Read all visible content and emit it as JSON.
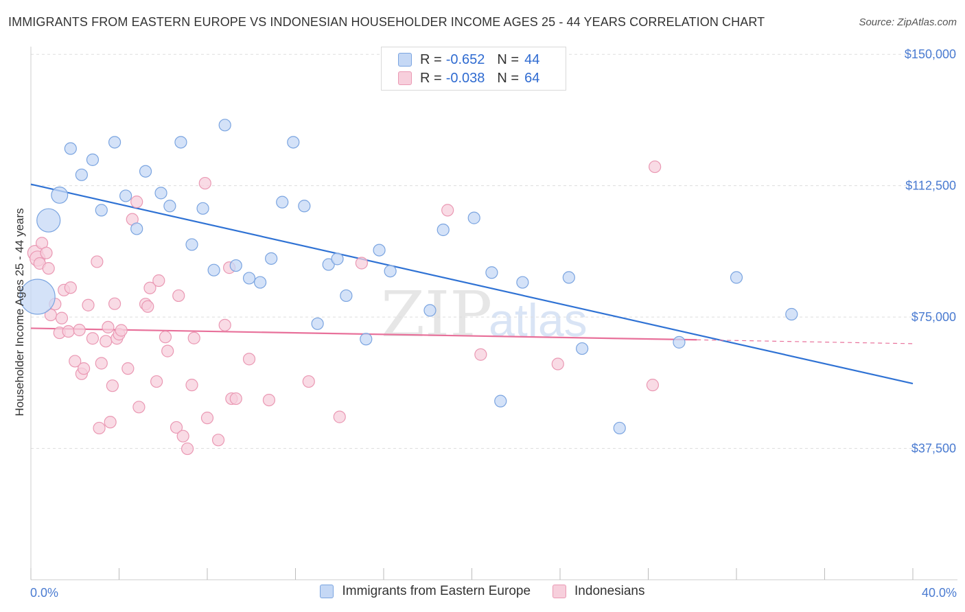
{
  "header": {
    "title": "IMMIGRANTS FROM EASTERN EUROPE VS INDONESIAN HOUSEHOLDER INCOME AGES 25 - 44 YEARS CORRELATION CHART",
    "source": "Source: ZipAtlas.com"
  },
  "legend_stats": [
    {
      "r_label": "R =",
      "r_value": "-0.652",
      "n_label": "N =",
      "n_value": "44"
    },
    {
      "r_label": "R =",
      "r_value": "-0.038",
      "n_label": "N =",
      "n_value": "64"
    }
  ],
  "colors": {
    "blue_fill": "#c5d8f5",
    "blue_stroke": "#7aa4e0",
    "blue_line": "#2f72d4",
    "pink_fill": "#f7cfdc",
    "pink_stroke": "#ea98b3",
    "pink_line": "#e8709a",
    "tick_text": "#4a7bd1",
    "grid": "#dddddd"
  },
  "chart_data": {
    "type": "scatter",
    "title": "IMMIGRANTS FROM EASTERN EUROPE VS INDONESIAN HOUSEHOLDER INCOME AGES 25 - 44 YEARS CORRELATION CHART",
    "xlabel": "",
    "ylabel": "Householder Income Ages 25 - 44 years",
    "xlim": [
      0,
      40
    ],
    "ylim": [
      0,
      157000
    ],
    "x_tick_labels": [
      "0.0%",
      "40.0%"
    ],
    "y_ticks": [
      37500,
      75000,
      112500,
      150000
    ],
    "y_tick_labels": [
      "$37,500",
      "$75,000",
      "$112,500",
      "$150,000"
    ],
    "grid": "horizontal dashed",
    "legend_placement": "bottom",
    "series": [
      {
        "name": "Immigrants from Eastern Europe",
        "color": "#7aa4e0",
        "trend": {
          "x": [
            0,
            40
          ],
          "y": [
            112900,
            56000
          ]
        },
        "points": [
          {
            "x": 0.3,
            "y": 80800,
            "s": 3
          },
          {
            "x": 0.8,
            "y": 102600,
            "s": 2
          },
          {
            "x": 1.3,
            "y": 109800,
            "s": 1.4
          },
          {
            "x": 1.8,
            "y": 123100
          },
          {
            "x": 2.3,
            "y": 115600
          },
          {
            "x": 2.8,
            "y": 119900
          },
          {
            "x": 3.2,
            "y": 105500
          },
          {
            "x": 3.8,
            "y": 124900
          },
          {
            "x": 4.3,
            "y": 109600
          },
          {
            "x": 4.8,
            "y": 100200
          },
          {
            "x": 5.2,
            "y": 116600
          },
          {
            "x": 5.9,
            "y": 110400
          },
          {
            "x": 6.3,
            "y": 106700
          },
          {
            "x": 6.8,
            "y": 124900
          },
          {
            "x": 7.3,
            "y": 95700
          },
          {
            "x": 7.8,
            "y": 106000
          },
          {
            "x": 8.3,
            "y": 88400
          },
          {
            "x": 8.8,
            "y": 129800
          },
          {
            "x": 9.3,
            "y": 89700
          },
          {
            "x": 9.9,
            "y": 86100
          },
          {
            "x": 10.4,
            "y": 84900
          },
          {
            "x": 10.9,
            "y": 91700
          },
          {
            "x": 11.4,
            "y": 107800
          },
          {
            "x": 11.9,
            "y": 124900
          },
          {
            "x": 12.4,
            "y": 106700
          },
          {
            "x": 13.0,
            "y": 73100
          },
          {
            "x": 13.5,
            "y": 90000
          },
          {
            "x": 13.9,
            "y": 91600
          },
          {
            "x": 14.3,
            "y": 81100
          },
          {
            "x": 15.2,
            "y": 68700
          },
          {
            "x": 15.8,
            "y": 94100
          },
          {
            "x": 16.3,
            "y": 88100
          },
          {
            "x": 18.1,
            "y": 76900
          },
          {
            "x": 18.7,
            "y": 99900
          },
          {
            "x": 20.1,
            "y": 103300
          },
          {
            "x": 20.9,
            "y": 87700
          },
          {
            "x": 21.3,
            "y": 51000
          },
          {
            "x": 22.3,
            "y": 84900
          },
          {
            "x": 24.4,
            "y": 86300
          },
          {
            "x": 25.0,
            "y": 66000
          },
          {
            "x": 26.7,
            "y": 43300
          },
          {
            "x": 29.4,
            "y": 67800
          },
          {
            "x": 32.0,
            "y": 86300
          },
          {
            "x": 34.5,
            "y": 75800
          }
        ]
      },
      {
        "name": "Indonesians",
        "color": "#ea98b3",
        "trend": {
          "x": [
            0,
            30.2
          ],
          "y": [
            71800,
            68500
          ]
        },
        "trend_dashed": {
          "x": [
            30.2,
            40
          ],
          "y": [
            68500,
            67400
          ]
        },
        "points": [
          {
            "x": 0.2,
            "y": 93300,
            "s": 1.3
          },
          {
            "x": 0.3,
            "y": 91700,
            "s": 1.3
          },
          {
            "x": 0.4,
            "y": 90300
          },
          {
            "x": 0.5,
            "y": 96100
          },
          {
            "x": 0.7,
            "y": 93300
          },
          {
            "x": 0.8,
            "y": 88900
          },
          {
            "x": 0.9,
            "y": 75600
          },
          {
            "x": 1.1,
            "y": 78700
          },
          {
            "x": 1.3,
            "y": 70500
          },
          {
            "x": 1.4,
            "y": 74700
          },
          {
            "x": 1.5,
            "y": 82700
          },
          {
            "x": 1.7,
            "y": 70900
          },
          {
            "x": 1.8,
            "y": 83400
          },
          {
            "x": 2.0,
            "y": 62400
          },
          {
            "x": 2.2,
            "y": 71300
          },
          {
            "x": 2.3,
            "y": 58800
          },
          {
            "x": 2.4,
            "y": 60300
          },
          {
            "x": 2.6,
            "y": 78400
          },
          {
            "x": 2.8,
            "y": 68900
          },
          {
            "x": 3.0,
            "y": 90800
          },
          {
            "x": 3.1,
            "y": 43300
          },
          {
            "x": 3.2,
            "y": 61800
          },
          {
            "x": 3.4,
            "y": 68100
          },
          {
            "x": 3.5,
            "y": 72100
          },
          {
            "x": 3.6,
            "y": 45000
          },
          {
            "x": 3.7,
            "y": 55400
          },
          {
            "x": 3.8,
            "y": 78800
          },
          {
            "x": 3.9,
            "y": 68900
          },
          {
            "x": 4.0,
            "y": 70100
          },
          {
            "x": 4.1,
            "y": 71200
          },
          {
            "x": 4.4,
            "y": 60300
          },
          {
            "x": 4.6,
            "y": 102900
          },
          {
            "x": 4.8,
            "y": 107900
          },
          {
            "x": 4.9,
            "y": 49300
          },
          {
            "x": 5.2,
            "y": 78700
          },
          {
            "x": 5.3,
            "y": 78000
          },
          {
            "x": 5.4,
            "y": 83300
          },
          {
            "x": 5.7,
            "y": 56600
          },
          {
            "x": 5.8,
            "y": 85400
          },
          {
            "x": 6.1,
            "y": 69300
          },
          {
            "x": 6.2,
            "y": 65300
          },
          {
            "x": 6.6,
            "y": 43500
          },
          {
            "x": 6.7,
            "y": 81100
          },
          {
            "x": 6.9,
            "y": 41000
          },
          {
            "x": 7.1,
            "y": 37400
          },
          {
            "x": 7.3,
            "y": 55600
          },
          {
            "x": 7.4,
            "y": 69000
          },
          {
            "x": 7.9,
            "y": 113200
          },
          {
            "x": 8.0,
            "y": 46200
          },
          {
            "x": 8.5,
            "y": 39900
          },
          {
            "x": 8.8,
            "y": 72700
          },
          {
            "x": 9.0,
            "y": 89100
          },
          {
            "x": 9.1,
            "y": 51700
          },
          {
            "x": 9.3,
            "y": 51700
          },
          {
            "x": 9.9,
            "y": 63000
          },
          {
            "x": 10.8,
            "y": 51300
          },
          {
            "x": 12.6,
            "y": 56600
          },
          {
            "x": 14.0,
            "y": 46500
          },
          {
            "x": 15.0,
            "y": 90400
          },
          {
            "x": 18.9,
            "y": 105500
          },
          {
            "x": 20.4,
            "y": 64300
          },
          {
            "x": 23.9,
            "y": 61600
          },
          {
            "x": 28.2,
            "y": 55600
          },
          {
            "x": 28.3,
            "y": 117900
          }
        ]
      }
    ]
  }
}
